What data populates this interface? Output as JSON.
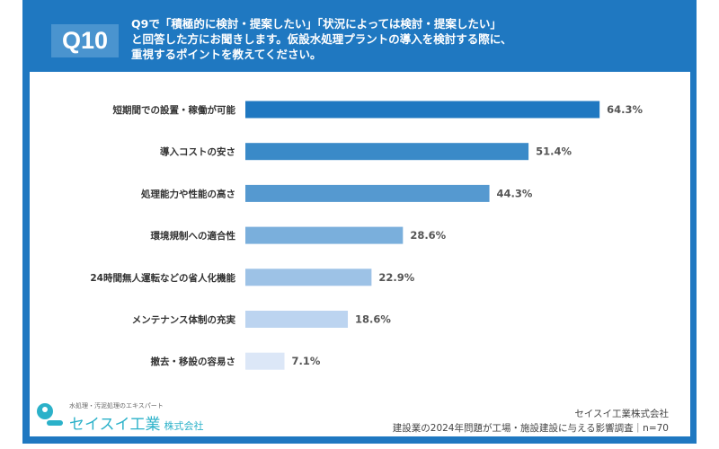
{
  "header": {
    "badge": "Q10",
    "question": "Q9で「積極的に検討・提案したい」「状況によっては検討・提案したい」\nと回答した方にお聞きします。仮設水処理プラントの導入を検討する際に、\n重視するポイントを教えてください。"
  },
  "chart_data": {
    "type": "bar",
    "orientation": "horizontal",
    "categories": [
      "短期間での設置・稼働が可能",
      "導入コストの安さ",
      "処理能力や性能の高さ",
      "環境規制への適合性",
      "24時間無人運転などの省人化機能",
      "メンテナンス体制の充実",
      "撤去・移設の容易さ"
    ],
    "values": [
      64.3,
      51.4,
      44.3,
      28.6,
      22.9,
      18.6,
      7.1
    ],
    "value_labels": [
      "64.3%",
      "51.4%",
      "44.3%",
      "28.6%",
      "22.9%",
      "18.6%",
      "7.1%"
    ],
    "colors": [
      "#1f78c1",
      "#3a8ac8",
      "#5599d0",
      "#7aafdc",
      "#9dc2e6",
      "#bcd4f0",
      "#dce7f7"
    ],
    "grid": false
  },
  "footer": {
    "tagline": "水処理・汚泥処理のエキスパート",
    "brand": "セイスイ工業",
    "brand_suffix": "株式会社",
    "company": "セイスイ工業株式会社",
    "survey": "建設業の2024年問題が工場・施設建設に与える影響調査｜n=70"
  }
}
